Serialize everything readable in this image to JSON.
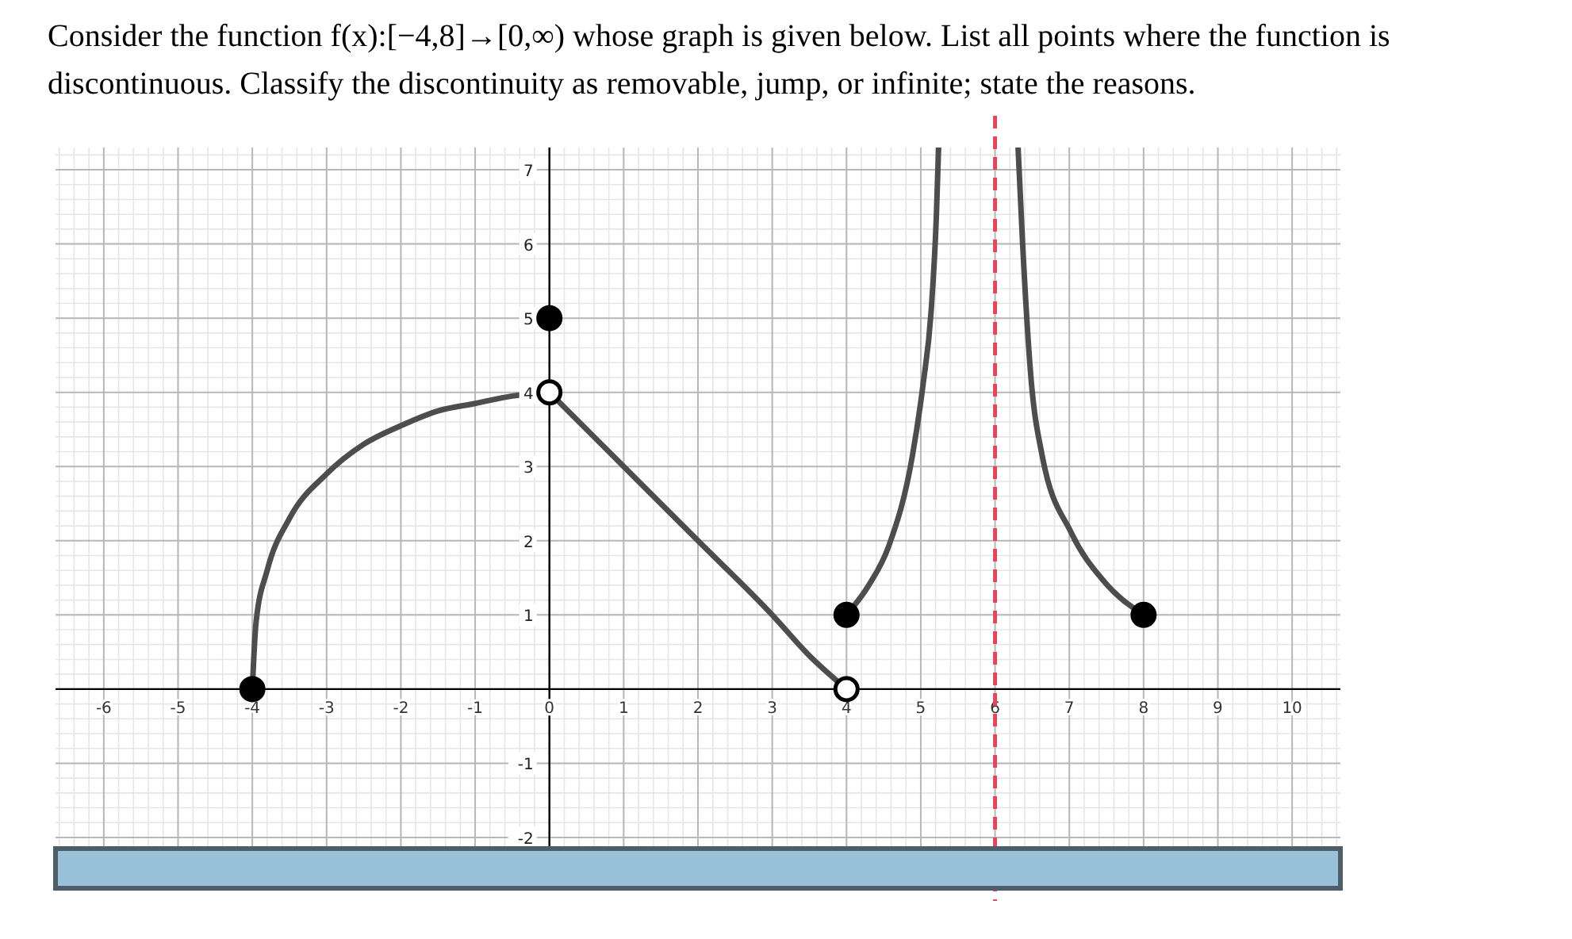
{
  "chart_data": {
    "type": "line",
    "title": "Consider the function f(x):[−4,8]→[0,∞) whose graph is given below. List all points where the function is discontinuous. Classify the discontinuity as removable, jump, or infinite; state the reasons.",
    "xlim": [
      -6.65,
      10.65
    ],
    "ylim": [
      -2.15,
      7.3
    ],
    "xticks": [
      -6,
      -5,
      -4,
      -3,
      -2,
      -1,
      0,
      1,
      2,
      3,
      4,
      5,
      6,
      7,
      8,
      9,
      10
    ],
    "yticks": [
      -2,
      -1,
      1,
      2,
      3,
      4,
      5,
      6,
      7
    ],
    "grid": true,
    "series": [
      {
        "marker": "none",
        "color": "#4d4d4d",
        "x": [
          -4,
          -3.95,
          -3.8,
          -3.5,
          -3,
          -2.5,
          -2,
          -1.5,
          -1,
          -0.5,
          0
        ],
        "values": [
          0,
          0.9,
          1.6,
          2.3,
          2.9,
          3.3,
          3.55,
          3.75,
          3.85,
          3.95,
          4
        ]
      },
      {
        "marker": "none",
        "color": "#4d4d4d",
        "x": [
          0,
          1,
          2,
          3,
          3.5,
          4
        ],
        "values": [
          4,
          3,
          2,
          1,
          0.45,
          0
        ]
      },
      {
        "marker": "none",
        "color": "#4d4d4d",
        "x": [
          4,
          4.3,
          4.57,
          4.89,
          5.03,
          5.14,
          5.21,
          5.24
        ],
        "values": [
          1,
          1.4,
          1.93,
          3.16,
          4.1,
          5.1,
          6.38,
          7.3
        ]
      },
      {
        "marker": "none",
        "color": "#4d4d4d",
        "x": [
          6.31,
          6.37,
          6.48,
          6.63,
          7.03,
          7.46,
          8
        ],
        "values": [
          7.3,
          6.03,
          4.24,
          3.17,
          2.1,
          1.46,
          1
        ]
      },
      {
        "type": "scatter",
        "marker": "circle",
        "color": "#000000",
        "x": [
          -4,
          0,
          4,
          8
        ],
        "values": [
          0,
          5,
          1,
          1
        ]
      },
      {
        "type": "scatter",
        "marker": "circle",
        "color": "#ffffff",
        "x": [
          0,
          4
        ],
        "values": [
          4,
          0
        ]
      }
    ],
    "ref_lines": [
      {
        "axis": "x",
        "value": 6,
        "color": "#e0475a",
        "line_style": "dashed"
      }
    ]
  }
}
